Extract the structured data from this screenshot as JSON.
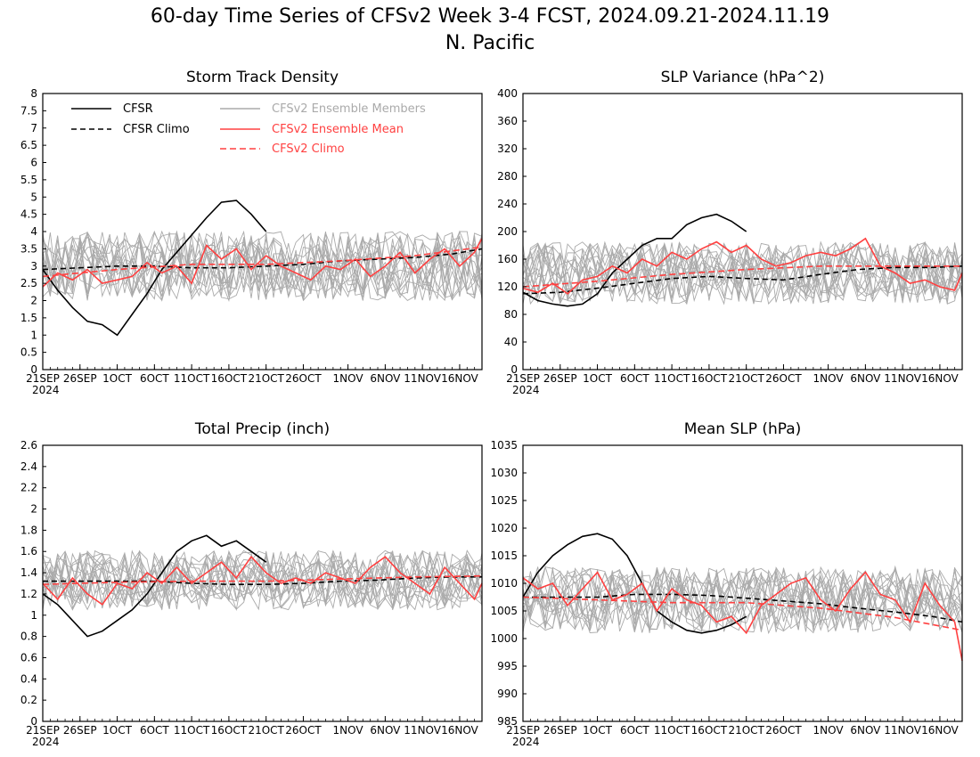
{
  "figure": {
    "title": "60-day Time Series of CFSv2 Week 3-4 FCST, 2024.09.21-2024.11.19\nN. Pacific"
  },
  "styles": {
    "cfsr_color": "#000000",
    "ensemble_member_color": "#aaaaaa",
    "ensemble_mean_color": "#ff4040"
  },
  "legend": {
    "cfsr": "CFSR",
    "cfsr_climo": "CFSR Climo",
    "members": "CFSv2 Ensemble Members",
    "ens_mean": "CFSv2 Ensemble Mean",
    "cfsv2_climo": "CFSv2 Climo"
  },
  "x_axis": {
    "year_label": "2024",
    "tick_labels": [
      "21SEP",
      "26SEP",
      "1OCT",
      "6OCT",
      "11OCT",
      "16OCT",
      "21OCT",
      "26OCT",
      "1NOV",
      "6NOV",
      "11NOV",
      "16NOV"
    ],
    "tick_days": [
      0,
      5,
      10,
      15,
      20,
      25,
      30,
      35,
      41,
      46,
      51,
      56
    ],
    "num_days": 60
  },
  "chart_data": [
    {
      "type": "line",
      "title": "Storm Track Density",
      "ylim": [
        0,
        8
      ],
      "yticks": [
        "0",
        "0.5",
        "1",
        "1.5",
        "2",
        "2.5",
        "3",
        "3.5",
        "4",
        "4.5",
        "5",
        "5.5",
        "6",
        "6.5",
        "7",
        "7.5",
        "8"
      ],
      "member_mean": 3.0,
      "member_spread": 1.0,
      "member_count": 16,
      "series": [
        {
          "name": "CFSR",
          "x": [
            0,
            2,
            4,
            6,
            8,
            10,
            12,
            14,
            16,
            18,
            20,
            22,
            24,
            26,
            28,
            30
          ],
          "values": [
            2.9,
            2.3,
            1.8,
            1.4,
            1.3,
            1.0,
            1.6,
            2.2,
            2.9,
            3.4,
            3.9,
            4.4,
            4.85,
            4.9,
            4.5,
            4.0
          ]
        },
        {
          "name": "CFSR Climo",
          "x": [
            0,
            5,
            10,
            15,
            20,
            25,
            30,
            35,
            40,
            45,
            50,
            55,
            59
          ],
          "values": [
            2.9,
            2.95,
            3.0,
            3.0,
            2.95,
            2.95,
            3.0,
            3.05,
            3.15,
            3.2,
            3.25,
            3.35,
            3.5
          ]
        },
        {
          "name": "CFSv2 Ensemble Mean",
          "x": [
            0,
            2,
            4,
            6,
            8,
            10,
            12,
            14,
            16,
            18,
            20,
            22,
            24,
            26,
            28,
            30,
            32,
            34,
            36,
            38,
            40,
            42,
            44,
            46,
            48,
            50,
            52,
            54,
            56,
            58,
            59
          ],
          "values": [
            2.4,
            2.8,
            2.6,
            2.9,
            2.5,
            2.6,
            2.7,
            3.1,
            2.8,
            3.0,
            2.5,
            3.6,
            3.2,
            3.5,
            2.9,
            3.3,
            3.0,
            2.8,
            2.6,
            3.0,
            2.9,
            3.2,
            2.7,
            3.0,
            3.4,
            2.8,
            3.2,
            3.5,
            3.0,
            3.4,
            3.8
          ]
        },
        {
          "name": "CFSv2 Climo",
          "x": [
            0,
            10,
            20,
            30,
            40,
            50,
            59
          ],
          "values": [
            2.7,
            2.9,
            3.05,
            3.05,
            3.15,
            3.3,
            3.55
          ]
        }
      ]
    },
    {
      "type": "line",
      "title": "SLP Variance (hPa^2)",
      "ylim": [
        0,
        400
      ],
      "yticks": [
        "0",
        "40",
        "80",
        "120",
        "160",
        "200",
        "240",
        "280",
        "320",
        "360",
        "400"
      ],
      "member_mean": 140,
      "member_spread": 45,
      "member_count": 16,
      "series": [
        {
          "name": "CFSR",
          "x": [
            0,
            2,
            4,
            6,
            8,
            10,
            12,
            14,
            16,
            18,
            20,
            22,
            24,
            26,
            28,
            30
          ],
          "values": [
            112,
            100,
            95,
            92,
            95,
            110,
            140,
            160,
            180,
            190,
            190,
            210,
            220,
            225,
            215,
            200
          ]
        },
        {
          "name": "CFSR Climo",
          "x": [
            0,
            5,
            10,
            15,
            20,
            25,
            30,
            35,
            40,
            45,
            50,
            55,
            59
          ],
          "values": [
            110,
            112,
            118,
            125,
            132,
            135,
            132,
            130,
            138,
            145,
            148,
            148,
            150
          ]
        },
        {
          "name": "CFSv2 Ensemble Mean",
          "x": [
            0,
            2,
            4,
            6,
            8,
            10,
            12,
            14,
            16,
            18,
            20,
            22,
            24,
            26,
            28,
            30,
            32,
            34,
            36,
            38,
            40,
            42,
            44,
            46,
            48,
            50,
            52,
            54,
            56,
            58,
            59
          ],
          "values": [
            118,
            112,
            125,
            110,
            130,
            135,
            150,
            140,
            160,
            150,
            170,
            160,
            175,
            185,
            170,
            180,
            160,
            150,
            155,
            165,
            170,
            165,
            175,
            190,
            150,
            140,
            125,
            130,
            120,
            115,
            140
          ]
        },
        {
          "name": "CFSv2 Climo",
          "x": [
            0,
            10,
            20,
            30,
            40,
            50,
            59
          ],
          "values": [
            120,
            128,
            138,
            145,
            150,
            150,
            150
          ]
        }
      ]
    },
    {
      "type": "line",
      "title": "Total Precip (inch)",
      "ylim": [
        0,
        2.6
      ],
      "yticks": [
        "0",
        "0.2",
        "0.4",
        "0.6",
        "0.8",
        "1",
        "1.2",
        "1.4",
        "1.6",
        "1.8",
        "2",
        "2.2",
        "2.4",
        "2.6"
      ],
      "member_mean": 1.33,
      "member_spread": 0.28,
      "member_count": 16,
      "series": [
        {
          "name": "CFSR",
          "x": [
            0,
            2,
            4,
            6,
            8,
            10,
            12,
            14,
            16,
            18,
            20,
            22,
            24,
            26,
            28,
            30
          ],
          "values": [
            1.2,
            1.1,
            0.95,
            0.8,
            0.85,
            0.95,
            1.05,
            1.2,
            1.4,
            1.6,
            1.7,
            1.75,
            1.65,
            1.7,
            1.6,
            1.5
          ]
        },
        {
          "name": "CFSR Climo",
          "x": [
            0,
            5,
            10,
            15,
            20,
            25,
            30,
            35,
            40,
            45,
            50,
            55,
            59
          ],
          "values": [
            1.32,
            1.32,
            1.32,
            1.32,
            1.3,
            1.29,
            1.29,
            1.3,
            1.32,
            1.33,
            1.35,
            1.36,
            1.36
          ]
        },
        {
          "name": "CFSv2 Ensemble Mean",
          "x": [
            0,
            2,
            4,
            6,
            8,
            10,
            12,
            14,
            16,
            18,
            20,
            22,
            24,
            26,
            28,
            30,
            32,
            34,
            36,
            38,
            40,
            42,
            44,
            46,
            48,
            50,
            52,
            54,
            56,
            58,
            59
          ],
          "values": [
            1.3,
            1.15,
            1.35,
            1.2,
            1.1,
            1.3,
            1.25,
            1.4,
            1.3,
            1.45,
            1.3,
            1.4,
            1.5,
            1.35,
            1.55,
            1.4,
            1.3,
            1.35,
            1.3,
            1.4,
            1.35,
            1.3,
            1.45,
            1.55,
            1.4,
            1.3,
            1.2,
            1.45,
            1.3,
            1.15,
            1.3
          ]
        },
        {
          "name": "CFSv2 Climo",
          "x": [
            0,
            10,
            20,
            30,
            40,
            50,
            59
          ],
          "values": [
            1.29,
            1.31,
            1.32,
            1.32,
            1.34,
            1.36,
            1.37
          ]
        }
      ]
    },
    {
      "type": "line",
      "title": "Mean SLP (hPa)",
      "ylim": [
        985,
        1035
      ],
      "yticks": [
        "985",
        "990",
        "995",
        "1000",
        "1005",
        "1010",
        "1015",
        "1020",
        "1025",
        "1030",
        "1035"
      ],
      "member_mean": 1007,
      "member_spread": 6,
      "member_count": 16,
      "series": [
        {
          "name": "CFSR",
          "x": [
            0,
            2,
            4,
            6,
            8,
            10,
            12,
            14,
            16,
            18,
            20,
            22,
            24,
            26,
            28,
            30
          ],
          "values": [
            1007.5,
            1012,
            1015,
            1017,
            1018.5,
            1019,
            1018,
            1015,
            1010,
            1005,
            1003,
            1001.5,
            1001,
            1001.5,
            1002.5,
            1004
          ]
        },
        {
          "name": "CFSR Climo",
          "x": [
            0,
            5,
            10,
            15,
            20,
            25,
            30,
            35,
            40,
            45,
            50,
            55,
            59
          ],
          "values": [
            1007.5,
            1007.5,
            1007.5,
            1008,
            1008,
            1007.8,
            1007.3,
            1006.8,
            1006.3,
            1005.5,
            1004.8,
            1004,
            1003
          ]
        },
        {
          "name": "CFSv2 Ensemble Mean",
          "x": [
            0,
            2,
            4,
            6,
            8,
            10,
            12,
            14,
            16,
            18,
            20,
            22,
            24,
            26,
            28,
            30,
            32,
            34,
            36,
            38,
            40,
            42,
            44,
            46,
            48,
            50,
            52,
            54,
            56,
            58,
            59
          ],
          "values": [
            1011,
            1009,
            1010,
            1006,
            1009,
            1012,
            1007,
            1008,
            1010,
            1005,
            1009,
            1007,
            1006,
            1003,
            1004,
            1001,
            1006,
            1008,
            1010,
            1011,
            1007,
            1005,
            1009,
            1012,
            1008,
            1007,
            1003,
            1010,
            1006,
            1003,
            996
          ]
        },
        {
          "name": "CFSv2 Climo",
          "x": [
            0,
            10,
            20,
            30,
            40,
            50,
            59
          ],
          "values": [
            1007.5,
            1007,
            1006.5,
            1006.5,
            1005.5,
            1003.8,
            1001.5
          ]
        }
      ]
    }
  ]
}
